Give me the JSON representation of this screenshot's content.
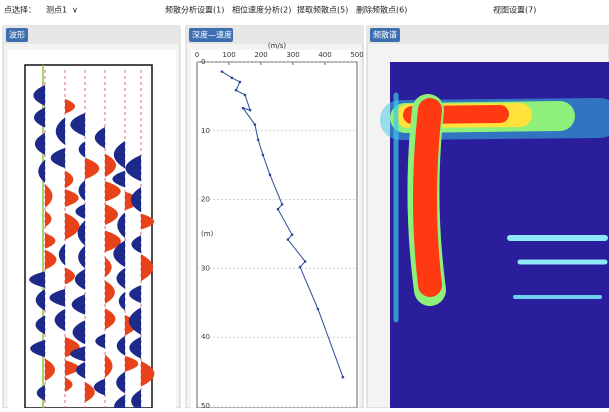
{
  "menu": {
    "point_label": "点选择：",
    "point_value": "测点1",
    "items": [
      "频散分析设置(1)",
      "相位速度分析(2)",
      "提取频散点(5)",
      "删除频散点(6)",
      "视图设置(7)"
    ]
  },
  "panels": {
    "waveform": "波形",
    "depth_velocity": "深度—速度",
    "spectrum": "频散谱"
  },
  "chart_data": {
    "type": "line",
    "x_label": "(m/s)",
    "y_label": "(m)",
    "color": "#2b4a9a",
    "x": [
      78,
      109,
      134,
      122,
      150,
      166,
      144,
      181,
      191,
      206,
      228,
      266,
      253,
      297,
      284,
      338,
      322,
      378,
      456
    ],
    "values": [
      1.4,
      2.3,
      2.9,
      4.1,
      4.8,
      7.0,
      6.7,
      9.1,
      11.3,
      13.5,
      16.4,
      20.7,
      21.4,
      25.1,
      25.8,
      29.0,
      29.8,
      35.9,
      45.8
    ],
    "xlim": [
      0,
      500
    ],
    "xticks": [
      0,
      100,
      200,
      300,
      400,
      500
    ],
    "ylim": [
      0,
      50
    ],
    "yticks": [
      0,
      10,
      20,
      30,
      40,
      50
    ],
    "grid": true
  }
}
